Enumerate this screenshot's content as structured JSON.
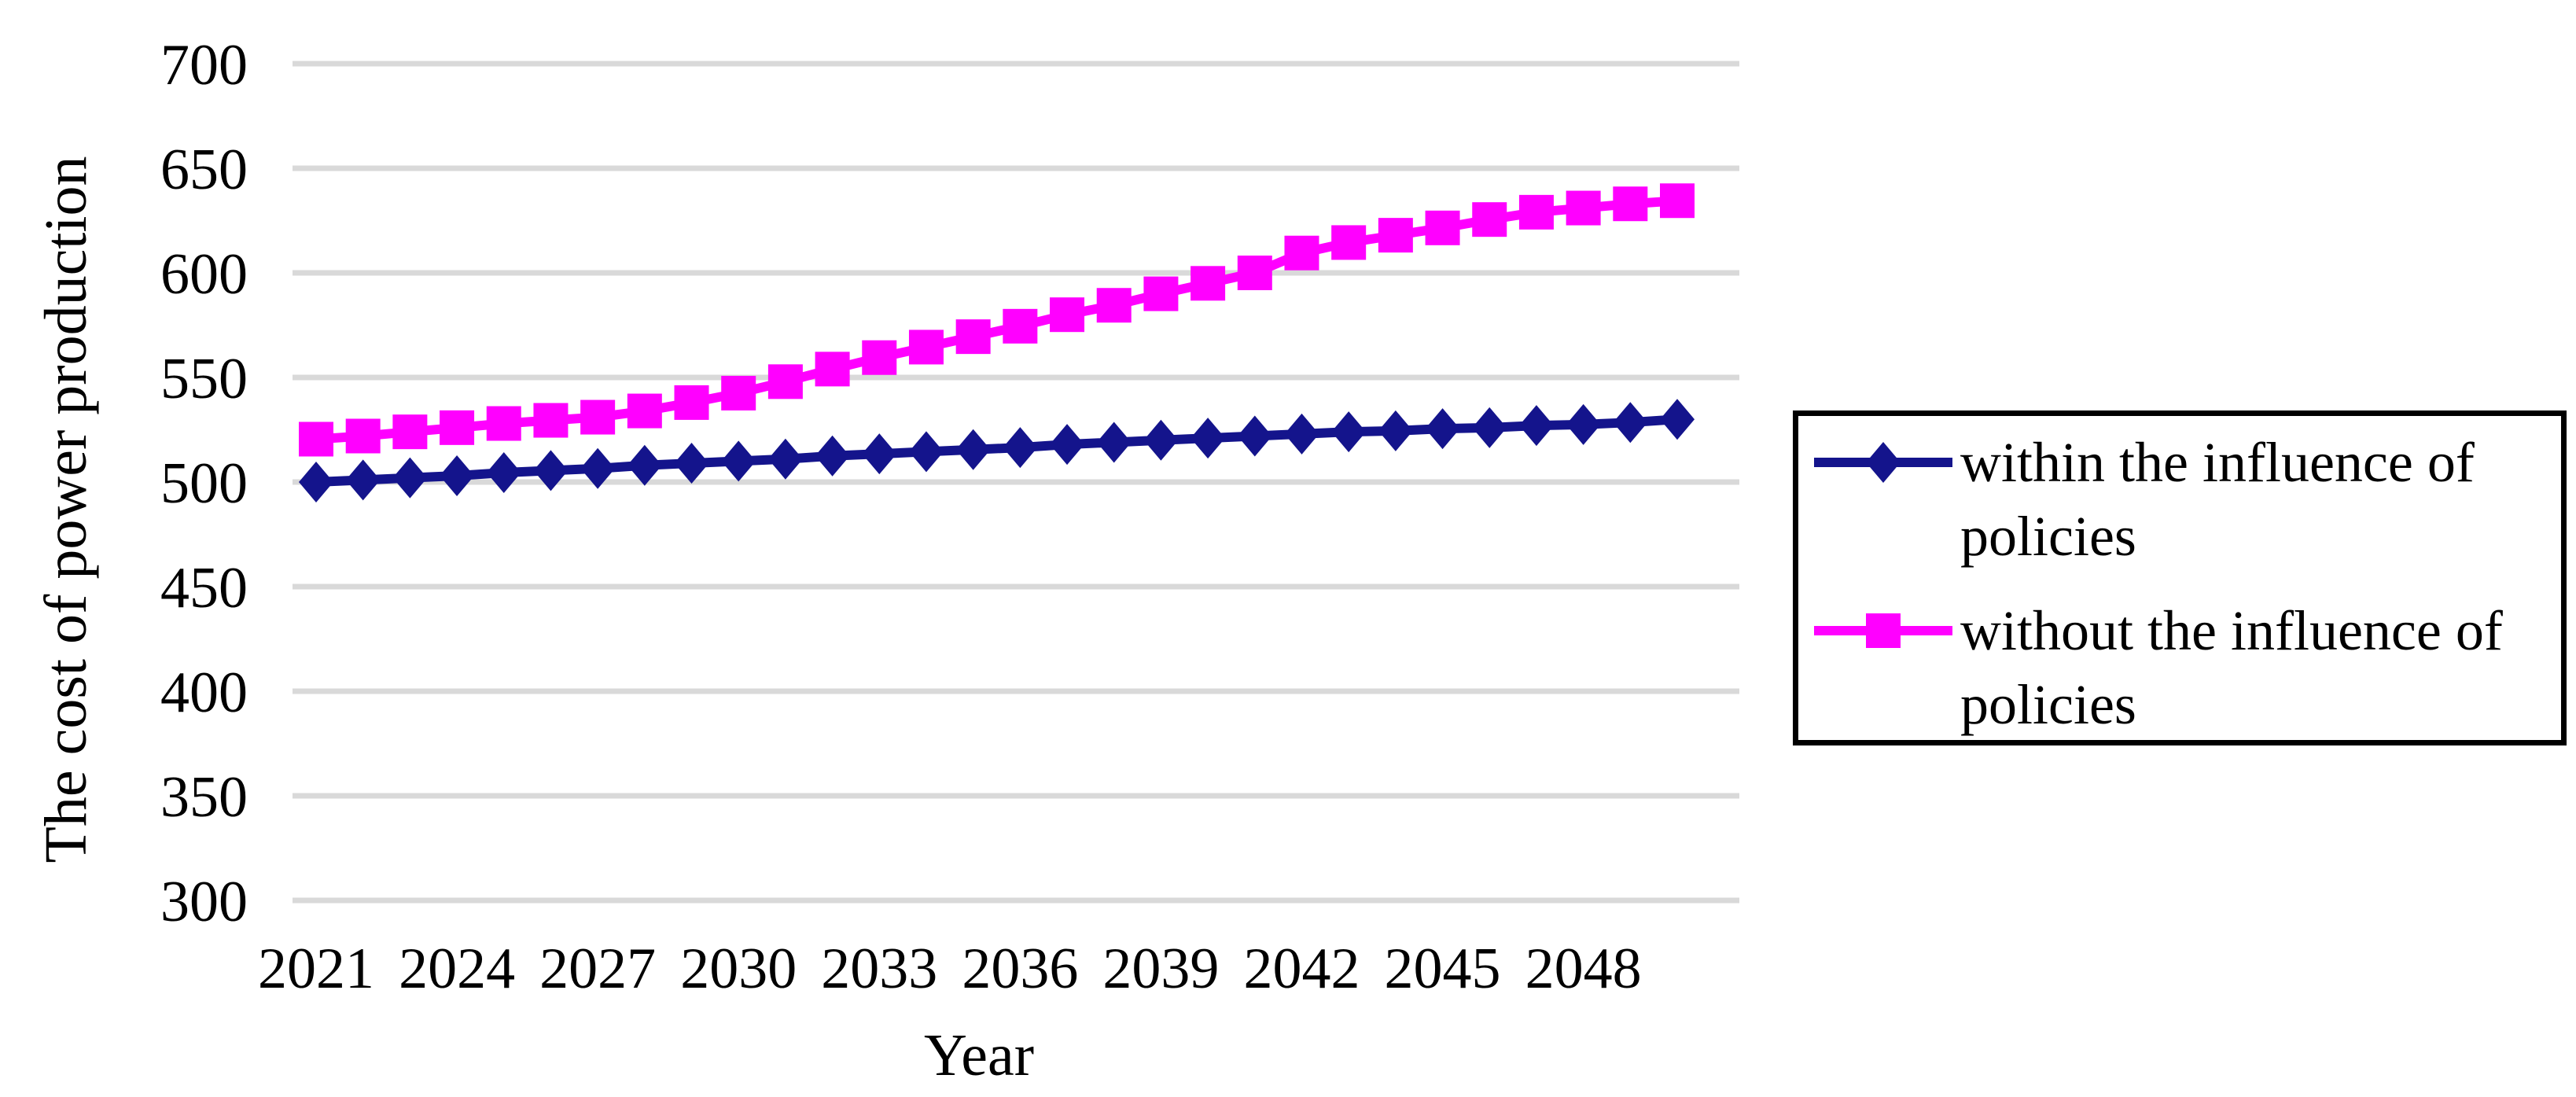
{
  "figure": {
    "background_color": "#FFFFFF",
    "gridline_color": "#D9D9D9",
    "legend_border_color": "#000000",
    "y_axis_title": "The cost of power production",
    "x_axis_title": "Year"
  },
  "legend": {
    "items": [
      {
        "label": "within the influence of policies",
        "marker": "diamond",
        "color": "#14148C"
      },
      {
        "label": "without the influence of policies",
        "marker": "square",
        "color": "#FF00FF"
      }
    ]
  },
  "chart_data": {
    "type": "line",
    "title": "",
    "xlabel": "Year",
    "ylabel": "The cost of power production",
    "ylim": [
      300,
      700
    ],
    "ytick_step": 50,
    "yticks": [
      300,
      350,
      400,
      450,
      500,
      550,
      600,
      650,
      700
    ],
    "xticks": [
      2021,
      2024,
      2027,
      2030,
      2033,
      2036,
      2039,
      2042,
      2045,
      2048
    ],
    "grid": true,
    "legend_position": "right",
    "x": [
      2021,
      2022,
      2023,
      2024,
      2025,
      2026,
      2027,
      2028,
      2029,
      2030,
      2031,
      2032,
      2033,
      2034,
      2035,
      2036,
      2037,
      2038,
      2039,
      2040,
      2041,
      2042,
      2043,
      2044,
      2045,
      2046,
      2047,
      2048,
      2049,
      2050
    ],
    "series": [
      {
        "name": "within the influence of policies",
        "color": "#14148C",
        "marker": "diamond",
        "values": [
          500,
          501,
          502,
          503,
          504.5,
          505.5,
          506.5,
          508,
          509,
          510,
          511,
          512.5,
          513.5,
          514.5,
          515.5,
          516.5,
          518,
          519,
          520,
          521,
          522,
          523,
          524,
          524.5,
          525.5,
          526,
          527,
          527.5,
          528.5,
          530
        ]
      },
      {
        "name": "without the influence of policies",
        "color": "#FF00FF",
        "marker": "square",
        "values": [
          520.5,
          522,
          524,
          526,
          528,
          529.5,
          531,
          534,
          538,
          542.5,
          548,
          554,
          559.5,
          564.5,
          569.5,
          574.5,
          580,
          584.5,
          590,
          595,
          600,
          609.5,
          614.5,
          618,
          621.5,
          625.5,
          629,
          631,
          633,
          634.5
        ]
      }
    ]
  }
}
